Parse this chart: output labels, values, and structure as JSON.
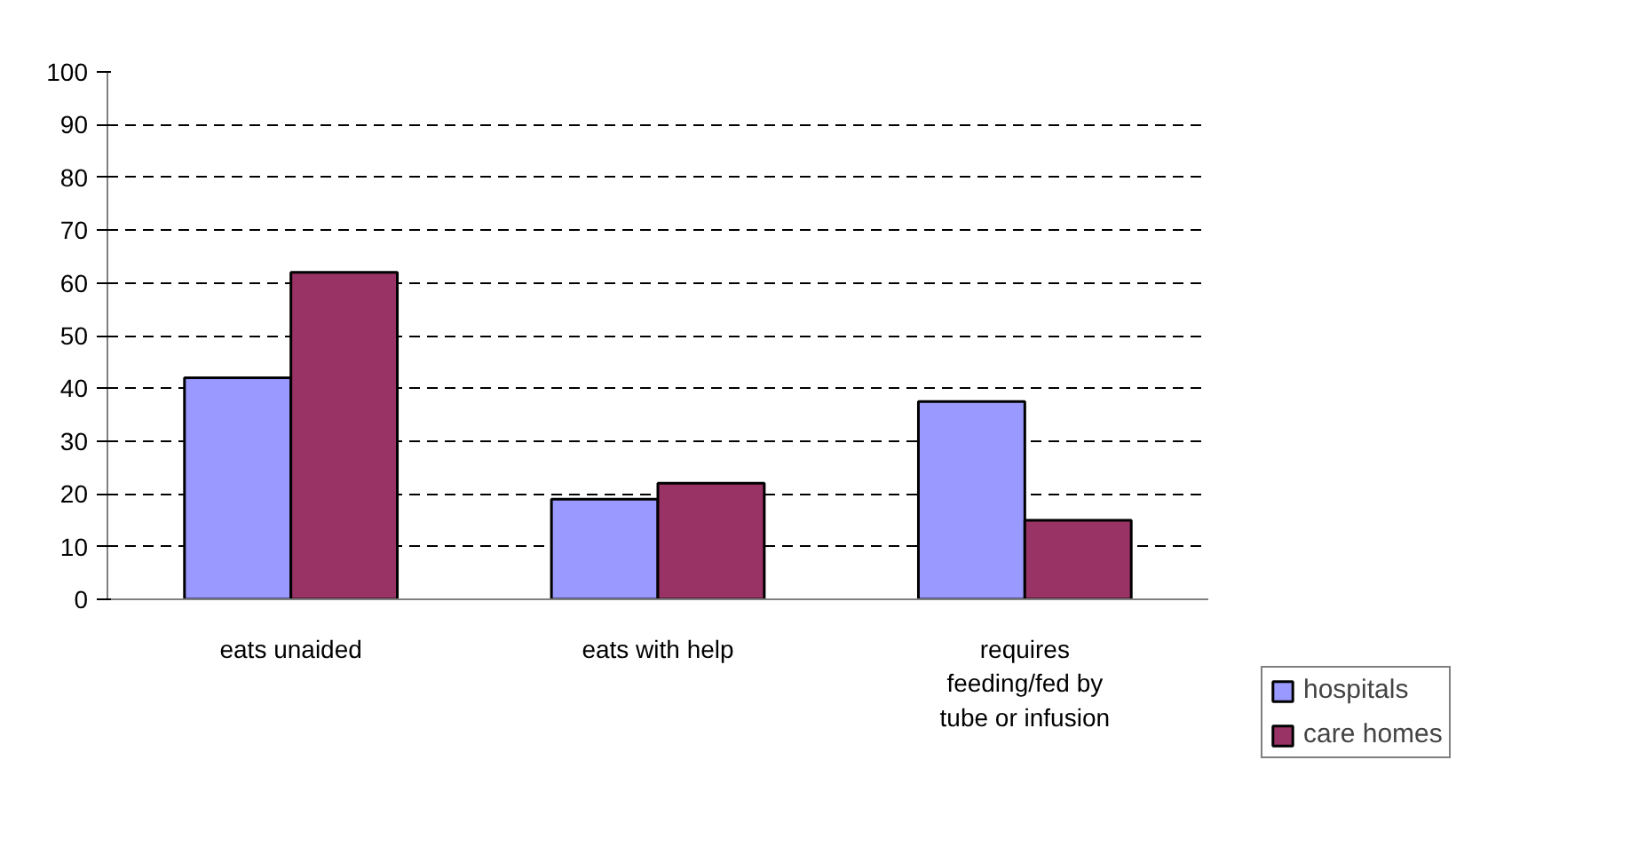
{
  "chart_data": {
    "type": "bar",
    "categories": [
      "eats unaided",
      "eats with help",
      "requires feeding/fed by tube or infusion"
    ],
    "series": [
      {
        "name": "hospitals",
        "color": "#9999ff",
        "values": [
          42,
          19,
          37.5
        ]
      },
      {
        "name": "care homes",
        "color": "#993366",
        "values": [
          62,
          22,
          15
        ]
      }
    ],
    "ylim": [
      0,
      100
    ],
    "yticks": [
      0,
      10,
      20,
      30,
      40,
      50,
      60,
      70,
      80,
      90,
      100
    ],
    "grid": "y",
    "legend": "right"
  }
}
